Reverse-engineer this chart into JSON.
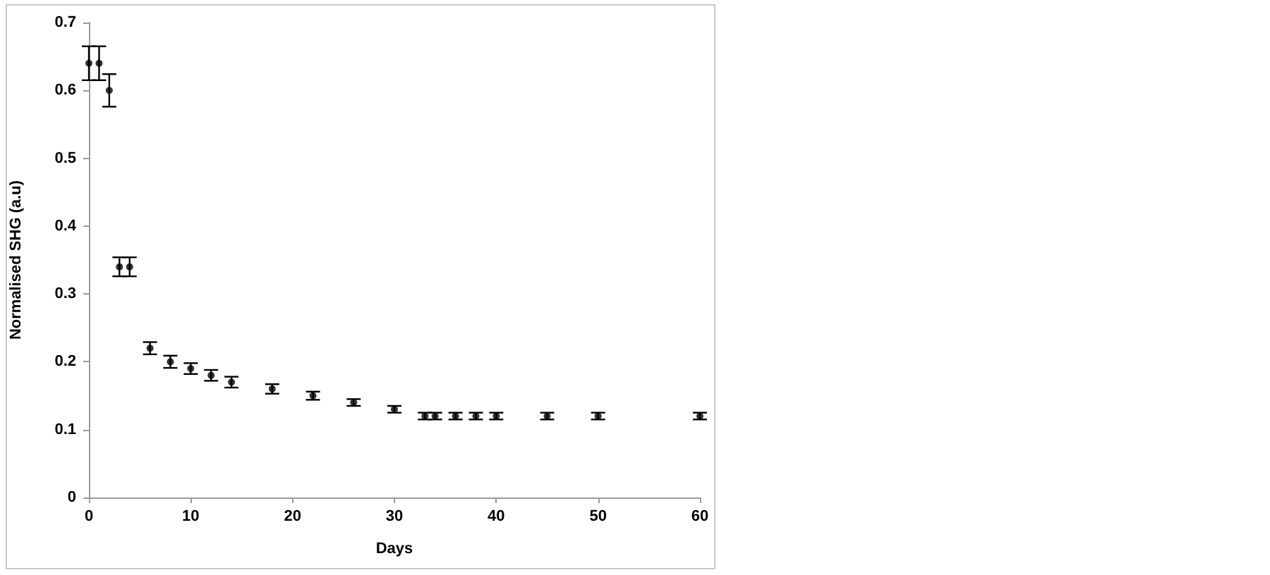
{
  "chart_data": {
    "type": "scatter",
    "xlabel": "Days",
    "ylabel": "Normalised SHG (a.u)",
    "x": [
      0,
      1,
      2,
      3,
      4,
      6,
      8,
      10,
      12,
      14,
      18,
      22,
      26,
      30,
      33,
      34,
      36,
      38,
      40,
      45,
      50,
      60
    ],
    "values": [
      0.64,
      0.64,
      0.6,
      0.34,
      0.34,
      0.22,
      0.2,
      0.19,
      0.18,
      0.17,
      0.16,
      0.15,
      0.14,
      0.13,
      0.12,
      0.12,
      0.12,
      0.12,
      0.12,
      0.12,
      0.12,
      0.12
    ],
    "errors": [
      0.025,
      0.025,
      0.024,
      0.014,
      0.014,
      0.009,
      0.009,
      0.008,
      0.008,
      0.008,
      0.007,
      0.006,
      0.005,
      0.005,
      0.005,
      0.005,
      0.005,
      0.005,
      0.005,
      0.005,
      0.005,
      0.005
    ],
    "color": "#000000",
    "marker": "circle",
    "xlim": [
      0,
      60
    ],
    "ylim": [
      0,
      0.7
    ],
    "xticks": [
      0,
      10,
      20,
      30,
      40,
      50,
      60
    ],
    "yticks": [
      0,
      0.1,
      0.2,
      0.3,
      0.4,
      0.5,
      0.6,
      0.7
    ]
  }
}
